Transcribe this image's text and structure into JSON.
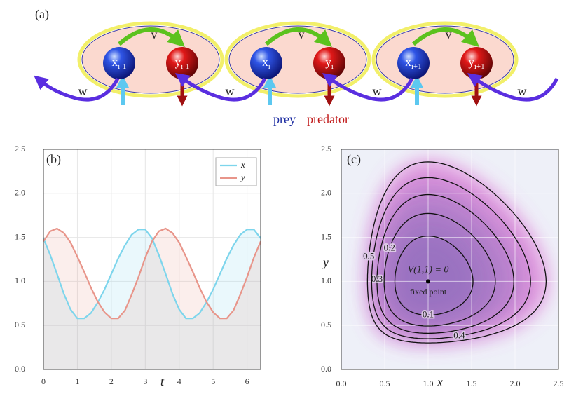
{
  "diagram": {
    "label": "(a)",
    "cells": [
      {
        "coupling": "v",
        "prey": {
          "base": "x",
          "sub": "i-1"
        },
        "predator": {
          "base": "y",
          "sub": "i-1"
        }
      },
      {
        "coupling": "v",
        "prey": {
          "base": "x",
          "sub": "i"
        },
        "predator": {
          "base": "y",
          "sub": "i"
        }
      },
      {
        "coupling": "v",
        "prey": {
          "base": "x",
          "sub": "i+1"
        },
        "predator": {
          "base": "y",
          "sub": "i+1"
        }
      }
    ],
    "w_labels": [
      "w",
      "w",
      "w",
      "w"
    ],
    "legend": {
      "prey": "prey",
      "predator": "predator"
    }
  },
  "chart_data": [
    {
      "type": "line",
      "panel_label": "(b)",
      "x": [
        0,
        0.2,
        0.4,
        0.6,
        0.8,
        1.0,
        1.2,
        1.4,
        1.6,
        1.8,
        2.0,
        2.2,
        2.4,
        2.6,
        2.8,
        3.0,
        3.2,
        3.4,
        3.6,
        3.8,
        4.0,
        4.2,
        4.4,
        4.6,
        4.8,
        5.0,
        5.2,
        5.4,
        5.6,
        5.8,
        6.0,
        6.2,
        6.4
      ],
      "series": [
        {
          "name": "x",
          "color": "#7dd5ec",
          "values": [
            1.49,
            1.3,
            1.085,
            0.86,
            0.68,
            0.58,
            0.58,
            0.64,
            0.76,
            0.91,
            1.085,
            1.26,
            1.41,
            1.53,
            1.59,
            1.59,
            1.49,
            1.3,
            1.085,
            0.86,
            0.68,
            0.58,
            0.58,
            0.64,
            0.76,
            0.91,
            1.085,
            1.26,
            1.41,
            1.53,
            1.59,
            1.59,
            1.49
          ]
        },
        {
          "name": "y",
          "color": "#e8958a",
          "values": [
            1.455,
            1.57,
            1.6,
            1.55,
            1.44,
            1.28,
            1.11,
            0.93,
            0.77,
            0.65,
            0.58,
            0.58,
            0.67,
            0.85,
            1.05,
            1.27,
            1.455,
            1.57,
            1.6,
            1.55,
            1.44,
            1.28,
            1.11,
            0.93,
            0.77,
            0.65,
            0.58,
            0.58,
            0.67,
            0.85,
            1.05,
            1.27,
            1.455
          ]
        }
      ],
      "xlim": [
        0,
        6.4
      ],
      "xticks": [
        0,
        1,
        2,
        3,
        4,
        5,
        6
      ],
      "xlabel": "t",
      "ylim": [
        0,
        2.5
      ],
      "yticks": [
        {
          "value": 0,
          "label": "0.0"
        },
        {
          "value": 0.5,
          "label": "0.5"
        },
        {
          "value": 1,
          "label": "1.0"
        },
        {
          "value": 1.5,
          "label": "1.5"
        },
        {
          "value": 2,
          "label": "2.0"
        },
        {
          "value": 2.5,
          "label": "2.5"
        }
      ],
      "grid": true,
      "legend": "upper right"
    },
    {
      "type": "contour",
      "panel_label": "(c)",
      "levels": [
        0.1,
        0.2,
        0.3,
        0.4,
        0.5
      ],
      "fixed_point": [
        1,
        1
      ],
      "annotations": [
        "V(1,1) = 0",
        "fixed point"
      ],
      "xlim": [
        0,
        2.5
      ],
      "xticks": [
        {
          "value": 0,
          "label": "0.0"
        },
        {
          "value": 0.5,
          "label": "0.5"
        },
        {
          "value": 1,
          "label": "1.0"
        },
        {
          "value": 1.5,
          "label": "1.5"
        },
        {
          "value": 2,
          "label": "2.0"
        },
        {
          "value": 2.5,
          "label": "2.5"
        }
      ],
      "xlabel": "x",
      "ylim": [
        0,
        2.5
      ],
      "yticks": [
        {
          "value": 0,
          "label": "0.0"
        },
        {
          "value": 0.5,
          "label": "0.5"
        },
        {
          "value": 1,
          "label": "1.0"
        },
        {
          "value": 1.5,
          "label": "1.5"
        },
        {
          "value": 2,
          "label": "2.0"
        },
        {
          "value": 2.5,
          "label": "2.5"
        }
      ],
      "ylabel": "y",
      "grid": true
    }
  ]
}
